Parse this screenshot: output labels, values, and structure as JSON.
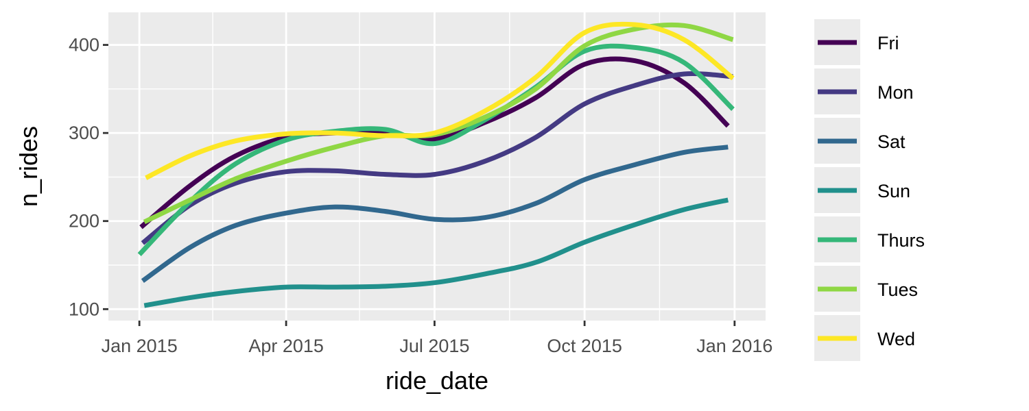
{
  "chart_data": {
    "type": "line",
    "title": "",
    "xlabel": "ride_date",
    "ylabel": "n_rides",
    "x_ticks": [
      {
        "date": "2015-01-01",
        "label": "Jan 2015"
      },
      {
        "date": "2015-04-01",
        "label": "Apr 2015"
      },
      {
        "date": "2015-07-01",
        "label": "Jul 2015"
      },
      {
        "date": "2015-10-01",
        "label": "Oct 2015"
      },
      {
        "date": "2016-01-01",
        "label": "Jan 2016"
      }
    ],
    "x_minor_ticks": [
      "2015-02-15",
      "2015-05-16",
      "2015-08-16",
      "2015-11-16"
    ],
    "y_ticks": [
      100,
      200,
      300,
      400
    ],
    "y_minor_ticks": [
      150,
      250,
      350
    ],
    "xlim": [
      "2014-12-13",
      "2016-01-20"
    ],
    "ylim": [
      87,
      437
    ],
    "grid": true,
    "legend_position": "right",
    "series": [
      {
        "name": "Fri",
        "color": "#440154",
        "points": [
          [
            "2015-01-02",
            193
          ],
          [
            "2015-02-01",
            240
          ],
          [
            "2015-03-01",
            274
          ],
          [
            "2015-04-01",
            295
          ],
          [
            "2015-05-01",
            300
          ],
          [
            "2015-06-01",
            300
          ],
          [
            "2015-07-01",
            293
          ],
          [
            "2015-08-01",
            312
          ],
          [
            "2015-09-01",
            340
          ],
          [
            "2015-10-01",
            378
          ],
          [
            "2015-11-01",
            382
          ],
          [
            "2015-12-01",
            357
          ],
          [
            "2015-12-28",
            308
          ]
        ]
      },
      {
        "name": "Mon",
        "color": "#443A83",
        "points": [
          [
            "2015-01-03",
            175
          ],
          [
            "2015-02-01",
            218
          ],
          [
            "2015-03-01",
            243
          ],
          [
            "2015-04-01",
            256
          ],
          [
            "2015-05-01",
            257
          ],
          [
            "2015-06-01",
            253
          ],
          [
            "2015-07-01",
            253
          ],
          [
            "2015-08-01",
            268
          ],
          [
            "2015-09-01",
            295
          ],
          [
            "2015-10-01",
            333
          ],
          [
            "2015-11-01",
            354
          ],
          [
            "2015-12-01",
            367
          ],
          [
            "2015-12-31",
            364
          ]
        ]
      },
      {
        "name": "Sat",
        "color": "#31688E",
        "points": [
          [
            "2015-01-03",
            132
          ],
          [
            "2015-02-01",
            170
          ],
          [
            "2015-03-01",
            195
          ],
          [
            "2015-04-01",
            209
          ],
          [
            "2015-05-01",
            216
          ],
          [
            "2015-06-01",
            211
          ],
          [
            "2015-07-01",
            202
          ],
          [
            "2015-08-01",
            204
          ],
          [
            "2015-09-01",
            220
          ],
          [
            "2015-10-01",
            247
          ],
          [
            "2015-11-01",
            264
          ],
          [
            "2015-12-01",
            278
          ],
          [
            "2015-12-28",
            284
          ]
        ]
      },
      {
        "name": "Sun",
        "color": "#21908C",
        "points": [
          [
            "2015-01-04",
            104
          ],
          [
            "2015-02-01",
            113
          ],
          [
            "2015-03-01",
            120
          ],
          [
            "2015-04-01",
            125
          ],
          [
            "2015-05-01",
            125
          ],
          [
            "2015-06-01",
            126
          ],
          [
            "2015-07-01",
            130
          ],
          [
            "2015-08-01",
            140
          ],
          [
            "2015-09-01",
            153
          ],
          [
            "2015-10-01",
            176
          ],
          [
            "2015-11-01",
            196
          ],
          [
            "2015-12-01",
            213
          ],
          [
            "2015-12-28",
            224
          ]
        ]
      },
      {
        "name": "Thurs",
        "color": "#35B779",
        "points": [
          [
            "2015-01-01",
            162
          ],
          [
            "2015-02-01",
            222
          ],
          [
            "2015-03-01",
            265
          ],
          [
            "2015-04-01",
            292
          ],
          [
            "2015-05-01",
            302
          ],
          [
            "2015-06-01",
            304
          ],
          [
            "2015-07-01",
            288
          ],
          [
            "2015-08-01",
            315
          ],
          [
            "2015-09-01",
            352
          ],
          [
            "2015-10-01",
            393
          ],
          [
            "2015-11-01",
            397
          ],
          [
            "2015-12-01",
            380
          ],
          [
            "2015-12-31",
            327
          ]
        ]
      },
      {
        "name": "Tues",
        "color": "#8FD744",
        "points": [
          [
            "2015-01-04",
            199
          ],
          [
            "2015-02-01",
            224
          ],
          [
            "2015-03-01",
            248
          ],
          [
            "2015-04-01",
            268
          ],
          [
            "2015-05-01",
            284
          ],
          [
            "2015-06-01",
            297
          ],
          [
            "2015-07-01",
            298
          ],
          [
            "2015-08-01",
            318
          ],
          [
            "2015-09-01",
            350
          ],
          [
            "2015-10-01",
            399
          ],
          [
            "2015-11-01",
            418
          ],
          [
            "2015-12-01",
            422
          ],
          [
            "2015-12-31",
            406
          ]
        ]
      },
      {
        "name": "Wed",
        "color": "#FDE725",
        "points": [
          [
            "2015-01-05",
            249
          ],
          [
            "2015-02-01",
            274
          ],
          [
            "2015-03-01",
            291
          ],
          [
            "2015-04-01",
            299
          ],
          [
            "2015-05-01",
            300
          ],
          [
            "2015-06-01",
            297
          ],
          [
            "2015-07-01",
            300
          ],
          [
            "2015-08-01",
            325
          ],
          [
            "2015-09-01",
            363
          ],
          [
            "2015-10-01",
            414
          ],
          [
            "2015-11-01",
            423
          ],
          [
            "2015-12-01",
            406
          ],
          [
            "2015-12-31",
            362
          ]
        ]
      }
    ]
  }
}
